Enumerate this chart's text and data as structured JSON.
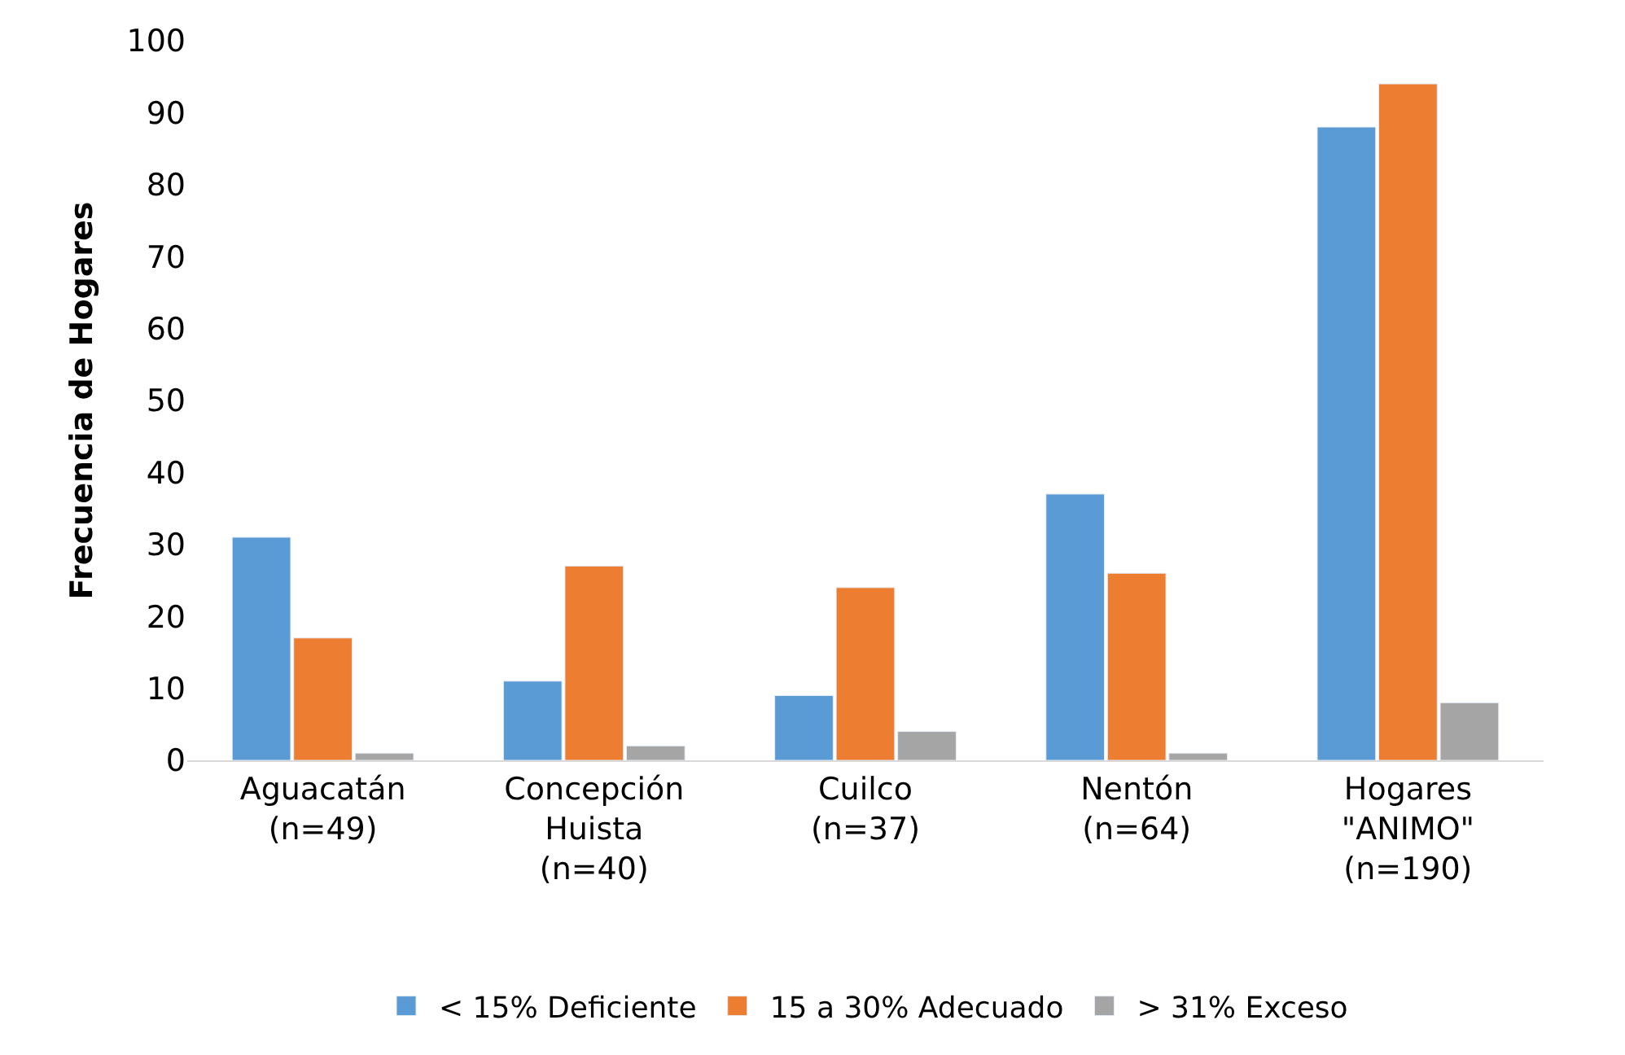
{
  "chart_data": {
    "type": "bar",
    "ylabel": "Frecuencia de Hogares",
    "categories": [
      "Aguacatán\n(n=49)",
      "Concepción\nHuista\n(n=40)",
      "Cuilco\n(n=37)",
      "Nentón\n(n=64)",
      "Hogares\n\"ANIMO\"\n(n=190)"
    ],
    "series": [
      {
        "name": "< 15% Deficiente",
        "color": "#5b9bd5",
        "values": [
          31,
          11,
          9,
          37,
          88
        ]
      },
      {
        "name": "15 a 30% Adecuado",
        "color": "#ed7d31",
        "values": [
          17,
          27,
          24,
          26,
          94
        ]
      },
      {
        "name": "> 31% Exceso",
        "color": "#a5a5a5",
        "values": [
          1,
          2,
          4,
          1,
          8
        ]
      }
    ],
    "ylim": [
      0,
      100
    ],
    "yticks": [
      0,
      10,
      20,
      30,
      40,
      50,
      60,
      70,
      80,
      90,
      100
    ],
    "legend": "bottom"
  }
}
